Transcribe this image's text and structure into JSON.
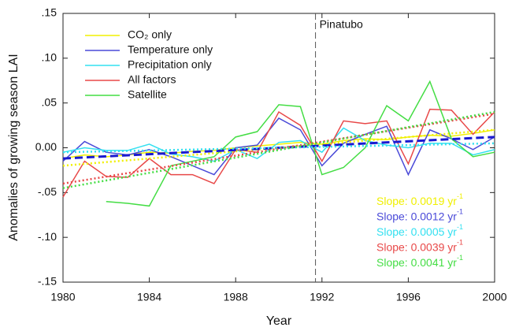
{
  "chart_data": {
    "type": "line",
    "x_label": "Year",
    "y_label": "Anomalies of growing season LAI",
    "x": [
      1980,
      1981,
      1982,
      1983,
      1984,
      1985,
      1986,
      1987,
      1988,
      1989,
      1990,
      1991,
      1992,
      1993,
      1994,
      1995,
      1996,
      1997,
      1998,
      1999,
      2000
    ],
    "xlim": [
      1980,
      2000
    ],
    "xticks": [
      1980,
      1984,
      1988,
      1992,
      1996,
      2000
    ],
    "ylim": [
      -0.15,
      0.15
    ],
    "yticks": [
      {
        "value": 0.15,
        "label": ".15"
      },
      {
        "value": 0.1,
        "label": ".10"
      },
      {
        "value": 0.05,
        "label": ".05"
      },
      {
        "value": 0,
        "label": "0.00"
      },
      {
        "value": -0.05,
        "label": "-.05"
      },
      {
        "value": -0.1,
        "label": "-.10"
      },
      {
        "value": -0.15,
        "label": "-.15"
      }
    ],
    "legend": "upper left",
    "event": {
      "label": "Pinatubo",
      "x": 1991.7
    },
    "slope_exponent": "-1",
    "series": [
      {
        "name": "CO₂ only",
        "color": "#f0f000",
        "trend_dash": "dotted",
        "trend": [
          -0.02,
          0.02
        ],
        "slope": "Slope: 0.0019 yr",
        "values": [
          -0.012,
          -0.008,
          -0.01,
          -0.008,
          -0.005,
          -0.006,
          -0.004,
          -0.003,
          0.0,
          0.002,
          0.004,
          0.006,
          0.004,
          0.008,
          0.01,
          0.009,
          0.012,
          0.014,
          0.013,
          0.016,
          0.02
        ]
      },
      {
        "name": "Temperature only",
        "color": "#4a4ad8",
        "trend_dash": "dashed",
        "trend": [
          -0.012,
          0.012
        ],
        "slope": "Slope: 0.0012 yr",
        "values": [
          -0.015,
          0.007,
          -0.005,
          -0.008,
          -0.002,
          -0.01,
          -0.02,
          -0.03,
          0.0,
          0.003,
          0.033,
          0.02,
          -0.02,
          0.005,
          0.015,
          0.024,
          -0.03,
          0.02,
          0.01,
          -0.002,
          0.012
        ]
      },
      {
        "name": "Precipitation only",
        "color": "#33e0f0",
        "trend_dash": "dotted",
        "trend": [
          -0.005,
          0.005
        ],
        "slope": "Slope: 0.0005 yr",
        "values": [
          -0.005,
          0.0,
          -0.003,
          -0.003,
          0.004,
          -0.007,
          -0.01,
          -0.015,
          -0.002,
          -0.012,
          0.006,
          0.008,
          -0.005,
          0.022,
          0.008,
          0.003,
          0.0,
          0.005,
          0.005,
          -0.008,
          -0.002
        ]
      },
      {
        "name": "All factors",
        "color": "#e84848",
        "trend_dash": "dotted",
        "trend": [
          -0.04,
          0.038
        ],
        "slope": "Slope: 0.0039 yr",
        "values": [
          -0.055,
          -0.015,
          -0.032,
          -0.033,
          -0.012,
          -0.03,
          -0.03,
          -0.04,
          -0.002,
          -0.005,
          0.04,
          0.025,
          -0.015,
          0.03,
          0.027,
          0.03,
          -0.018,
          0.043,
          0.042,
          0.015,
          0.04
        ]
      },
      {
        "name": "Satellite",
        "color": "#44dd44",
        "trend_dash": "dotted",
        "trend": [
          -0.045,
          0.04
        ],
        "slope": "Slope: 0.0041 yr",
        "values": [
          null,
          null,
          -0.06,
          -0.062,
          -0.065,
          -0.02,
          -0.015,
          -0.01,
          0.012,
          0.018,
          0.048,
          0.046,
          -0.03,
          -0.022,
          0.0,
          0.047,
          0.03,
          0.074,
          0.01,
          -0.01,
          -0.005
        ]
      }
    ]
  }
}
